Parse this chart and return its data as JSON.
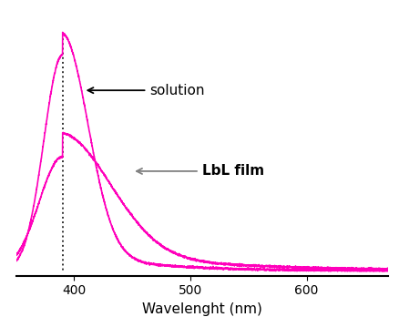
{
  "xlabel": "Wavelenght (nm)",
  "xlim": [
    350,
    670
  ],
  "peak_wavelength": 390,
  "line_color": "#FF00BB",
  "dotted_line_color": "#333333",
  "annotation_solution": "solution",
  "annotation_lbl": "LbL film",
  "xlabel_fontsize": 11,
  "tick_fontsize": 10,
  "background_color": "#ffffff",
  "xticks": [
    400,
    500,
    600
  ]
}
